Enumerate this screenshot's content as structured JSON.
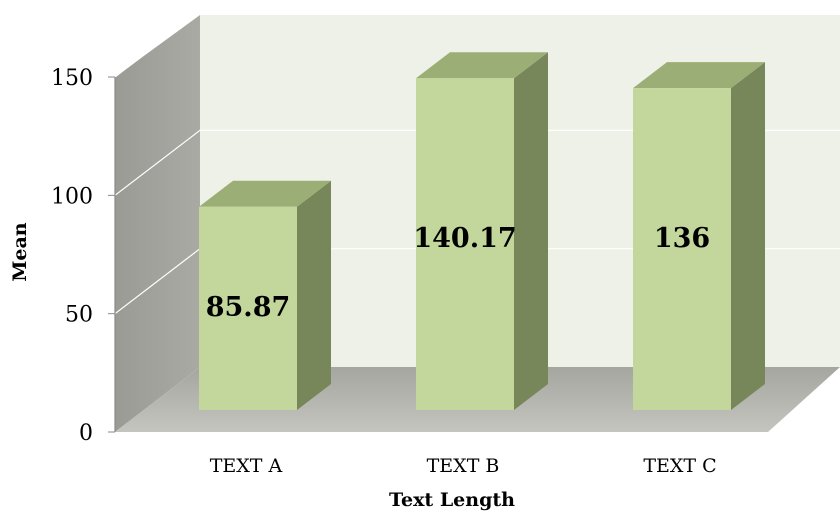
{
  "chart_data": {
    "type": "bar",
    "title": "",
    "xlabel": "Text Length",
    "ylabel": "Mean",
    "categories": [
      "TEXT A",
      "TEXT B",
      "TEXT C"
    ],
    "values": [
      85.87,
      140.17,
      136
    ],
    "data_labels": [
      "85.87",
      "140.17",
      "136"
    ],
    "ylim": [
      0,
      150
    ],
    "yticks": [
      "0",
      "50",
      "100",
      "150"
    ],
    "grid": true,
    "legend": "none",
    "style": "3d",
    "colors": {
      "bar_front": "#c3d69b",
      "bar_side": "#77875a",
      "bar_top": "#9bae75",
      "back_wall": "#eef1e8",
      "left_wall": "#a2a39c",
      "floor": "#b3b4ad"
    }
  }
}
